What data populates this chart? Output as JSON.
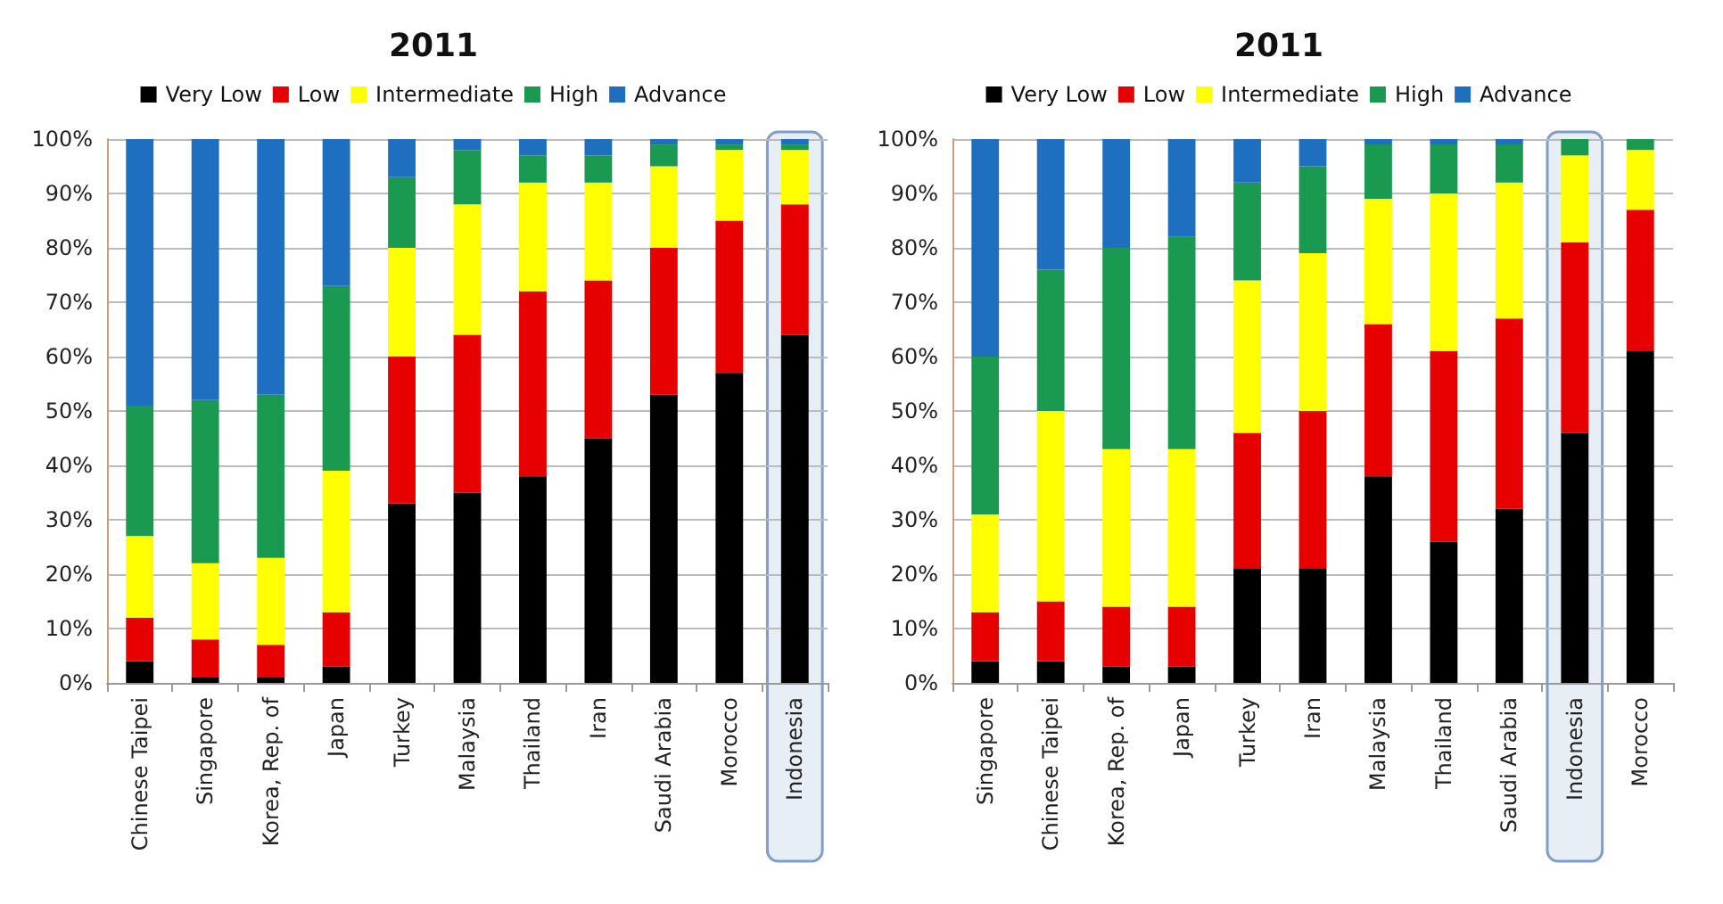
{
  "chart_data": [
    {
      "type": "bar",
      "stacked": true,
      "title": "2011",
      "categories": [
        "Chinese Taipei",
        "Singapore",
        "Korea, Rep. of",
        "Japan",
        "Turkey",
        "Malaysia",
        "Thailand",
        "Iran",
        "Saudi Arabia",
        "Morocco",
        "Indonesia"
      ],
      "series": [
        {
          "name": "Very Low",
          "color": "#000000",
          "values": [
            4,
            1,
            1,
            3,
            33,
            35,
            38,
            45,
            53,
            57,
            64
          ]
        },
        {
          "name": "Low",
          "color": "#e60000",
          "values": [
            8,
            7,
            6,
            10,
            27,
            29,
            34,
            29,
            27,
            28,
            24
          ]
        },
        {
          "name": "Intermediate",
          "color": "#ffff00",
          "values": [
            15,
            14,
            16,
            26,
            20,
            24,
            20,
            18,
            15,
            13,
            10
          ]
        },
        {
          "name": "High",
          "color": "#1a9a50",
          "values": [
            24,
            30,
            30,
            34,
            13,
            10,
            5,
            5,
            4,
            1,
            1
          ]
        },
        {
          "name": "Advance",
          "color": "#1f6fc0",
          "values": [
            49,
            48,
            47,
            27,
            7,
            2,
            3,
            3,
            1,
            1,
            1
          ]
        }
      ],
      "ylim": [
        0,
        100
      ],
      "yticks": [
        {
          "value": 0,
          "label": "0%"
        },
        {
          "value": 10,
          "label": "10%"
        },
        {
          "value": 20,
          "label": "20%"
        },
        {
          "value": 30,
          "label": "30%"
        },
        {
          "value": 40,
          "label": "40%"
        },
        {
          "value": 50,
          "label": "50%"
        },
        {
          "value": 60,
          "label": "60%"
        },
        {
          "value": 70,
          "label": "70%"
        },
        {
          "value": 80,
          "label": "80%"
        },
        {
          "value": 90,
          "label": "90%"
        },
        {
          "value": 100,
          "label": "100%"
        }
      ],
      "grid": "y",
      "legend": "top",
      "bands": [
        {
          "axis": "x",
          "from": "Indonesia",
          "to": "Indonesia",
          "color": "#7f9fc8"
        }
      ]
    },
    {
      "type": "bar",
      "stacked": true,
      "title": "2011",
      "categories": [
        "Singapore",
        "Chinese Taipei",
        "Korea, Rep. of",
        "Japan",
        "Turkey",
        "Iran",
        "Malaysia",
        "Thailand",
        "Saudi Arabia",
        "Indonesia",
        "Morocco"
      ],
      "series": [
        {
          "name": "Very Low",
          "color": "#000000",
          "values": [
            4,
            4,
            3,
            3,
            21,
            21,
            38,
            26,
            32,
            46,
            61
          ]
        },
        {
          "name": "Low",
          "color": "#e60000",
          "values": [
            9,
            11,
            11,
            11,
            25,
            29,
            28,
            35,
            35,
            35,
            26
          ]
        },
        {
          "name": "Intermediate",
          "color": "#ffff00",
          "values": [
            18,
            35,
            29,
            29,
            28,
            29,
            23,
            29,
            25,
            16,
            11
          ]
        },
        {
          "name": "High",
          "color": "#1a9a50",
          "values": [
            29,
            26,
            37,
            39,
            18,
            16,
            10,
            9,
            7,
            3,
            2
          ]
        },
        {
          "name": "Advance",
          "color": "#1f6fc0",
          "values": [
            40,
            24,
            20,
            18,
            8,
            5,
            1,
            1,
            1,
            0,
            0
          ]
        }
      ],
      "ylim": [
        0,
        100
      ],
      "yticks": [
        {
          "value": 0,
          "label": "0%"
        },
        {
          "value": 10,
          "label": "10%"
        },
        {
          "value": 20,
          "label": "20%"
        },
        {
          "value": 30,
          "label": "30%"
        },
        {
          "value": 40,
          "label": "40%"
        },
        {
          "value": 50,
          "label": "50%"
        },
        {
          "value": 60,
          "label": "60%"
        },
        {
          "value": 70,
          "label": "70%"
        },
        {
          "value": 80,
          "label": "80%"
        },
        {
          "value": 90,
          "label": "90%"
        },
        {
          "value": 100,
          "label": "100%"
        }
      ],
      "grid": "y",
      "legend": "top",
      "bands": [
        {
          "axis": "x",
          "from": "Indonesia",
          "to": "Indonesia",
          "color": "#7f9fc8"
        }
      ]
    }
  ]
}
